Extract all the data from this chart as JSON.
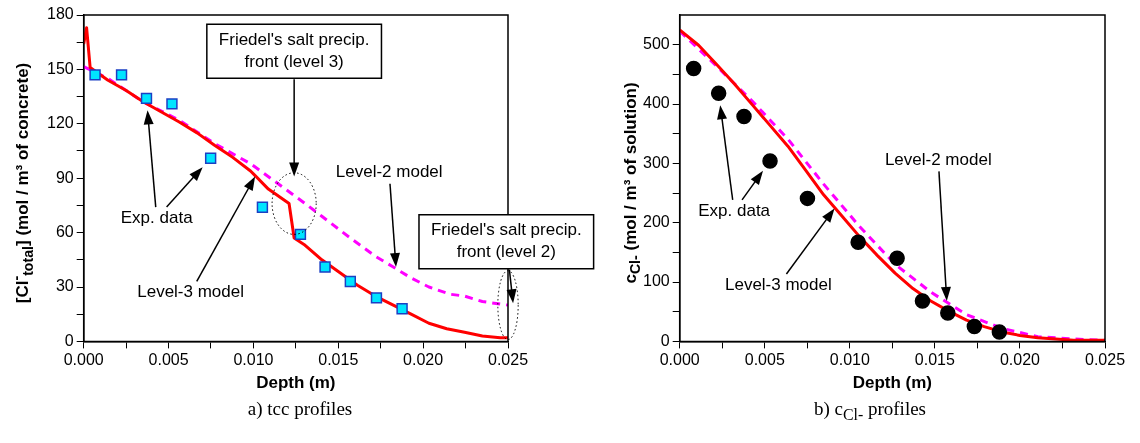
{
  "chart_data": [
    {
      "type": "line",
      "xlabel": "Depth (m)",
      "ylabel": "[Cl$^{-}$$_{total}$] (mol / m³ of concrete)",
      "xlim": [
        0,
        0.025
      ],
      "xticks": [
        {
          "value": 0,
          "label": "0.000"
        },
        {
          "value": 0.0025,
          "label": null
        },
        {
          "value": 0.005,
          "label": "0.005"
        },
        {
          "value": 0.0075,
          "label": null
        },
        {
          "value": 0.01,
          "label": "0.010"
        },
        {
          "value": 0.0125,
          "label": null
        },
        {
          "value": 0.015,
          "label": "0.015"
        },
        {
          "value": 0.0175,
          "label": null
        },
        {
          "value": 0.02,
          "label": "0.020"
        },
        {
          "value": 0.0225,
          "label": null
        },
        {
          "value": 0.025,
          "label": "0.025"
        }
      ],
      "ylim": [
        0,
        180
      ],
      "yticks": [
        0,
        {
          "value": 15,
          "label": null
        },
        30,
        {
          "value": 45,
          "label": null
        },
        60,
        {
          "value": 75,
          "label": null
        },
        90,
        {
          "value": 105,
          "label": null
        },
        120,
        {
          "value": 135,
          "label": null
        },
        150,
        {
          "value": 165,
          "label": null
        },
        180
      ],
      "grid": false,
      "legend": false,
      "series": [
        {
          "type": "scatter",
          "marker": "square",
          "color": "#00e5ff",
          "x": [
            0.00067,
            0.00223,
            0.0037,
            0.0052,
            0.00748,
            0.01053,
            0.01277,
            0.01422,
            0.01571,
            0.01725,
            0.01876
          ],
          "values": [
            147,
            147,
            134,
            131,
            101,
            74,
            59,
            41,
            33,
            24,
            18
          ]
        },
        {
          "type": "line",
          "marker": "none",
          "line_style": "solid",
          "color": "#ff0000",
          "x": [
            0,
            0.00017,
            0.00038,
            0.00143,
            0.00248,
            0.00353,
            0.00458,
            0.00563,
            0.00668,
            0.00773,
            0.00878,
            0.00983,
            0.01088,
            0.0121,
            0.0124,
            0.01298,
            0.01403,
            0.01508,
            0.01613,
            0.01718,
            0.01824,
            0.01929,
            0.02034,
            0.02139,
            0.02244,
            0.02349,
            0.02454,
            0.025
          ],
          "values": [
            164,
            173,
            151,
            144,
            138.5,
            132,
            126.5,
            121,
            115,
            108,
            101.5,
            94,
            84,
            76,
            57,
            53.5,
            45,
            38,
            31,
            25,
            20,
            15,
            10,
            7,
            5,
            3,
            2,
            2
          ]
        },
        {
          "type": "line",
          "marker": "none",
          "line_style": "dashed",
          "color": "#ff00ff",
          "x": [
            0,
            0.00143,
            0.00353,
            0.00563,
            0.00773,
            0.00983,
            0.0113,
            0.01298,
            0.01403,
            0.01571,
            0.01718,
            0.01824,
            0.01929,
            0.02034,
            0.0216,
            0.02244,
            0.02349,
            0.025
          ],
          "values": [
            151.5,
            145,
            132,
            122,
            109,
            98,
            88,
            76.5,
            69,
            57,
            47,
            41,
            35,
            30,
            26,
            25,
            22,
            20
          ]
        }
      ],
      "annotations": [
        "Friedel's salt precip. front (level 3)",
        "Friedel's salt precip. front (level 2)",
        "Exp. data",
        "Level-3 model",
        "Level-2 model",
        "a) tcc profiles"
      ]
    },
    {
      "type": "line",
      "xlabel": "Depth (m)",
      "ylabel": "c$_{Cl-}$ (mol / m³ of solution)",
      "xlim": [
        0,
        0.025
      ],
      "xticks": [
        {
          "value": 0,
          "label": "0.000"
        },
        {
          "value": 0.0025,
          "label": null
        },
        {
          "value": 0.005,
          "label": "0.005"
        },
        {
          "value": 0.0075,
          "label": null
        },
        {
          "value": 0.01,
          "label": "0.010"
        },
        {
          "value": 0.0125,
          "label": null
        },
        {
          "value": 0.015,
          "label": "0.015"
        },
        {
          "value": 0.0175,
          "label": null
        },
        {
          "value": 0.02,
          "label": "0.020"
        },
        {
          "value": 0.0225,
          "label": null
        },
        {
          "value": 0.025,
          "label": "0.025"
        }
      ],
      "ylim": [
        0,
        550
      ],
      "yticks": [
        0,
        {
          "value": 50,
          "label": null
        },
        100,
        {
          "value": 150,
          "label": null
        },
        200,
        {
          "value": 250,
          "label": null
        },
        300,
        {
          "value": 350,
          "label": null
        },
        400,
        {
          "value": 450,
          "label": null
        },
        500
      ],
      "grid": false,
      "legend": false,
      "series": [
        {
          "type": "scatter",
          "marker": "circle",
          "color": "#000000",
          "x": [
            0.00082,
            0.00229,
            0.00378,
            0.00531,
            0.00751,
            0.01049,
            0.01278,
            0.01427,
            0.01576,
            0.01732,
            0.01879
          ],
          "values": [
            460,
            418,
            379,
            304,
            241,
            167,
            140,
            68,
            48,
            25,
            16
          ]
        },
        {
          "type": "line",
          "marker": "none",
          "line_style": "solid",
          "color": "#ff0000",
          "x": [
            0,
            0.00111,
            0.00216,
            0.00321,
            0.00426,
            0.00531,
            0.00636,
            0.00741,
            0.00846,
            0.00951,
            0.01056,
            0.01161,
            0.01266,
            0.01371,
            0.01476,
            0.01581,
            0.01686,
            0.0179,
            0.01895,
            0.02,
            0.02105,
            0.0221,
            0.02315,
            0.025
          ],
          "values": [
            525,
            499,
            467,
            434,
            399,
            364,
            329,
            288,
            247,
            212,
            177,
            145,
            115,
            89,
            68,
            51,
            36,
            25,
            16,
            10,
            6,
            4,
            2,
            2
          ]
        },
        {
          "type": "line",
          "marker": "none",
          "line_style": "dashed",
          "color": "#ff00ff",
          "x": [
            0,
            0.00216,
            0.00426,
            0.00636,
            0.00846,
            0.01056,
            0.01266,
            0.01476,
            0.01686,
            0.01895,
            0.02105,
            0.02315,
            0.025
          ],
          "values": [
            523,
            464,
            405,
            341,
            265,
            194,
            130,
            83,
            45,
            22,
            8,
            4,
            2
          ]
        }
      ],
      "annotations": [
        "Exp. data",
        "Level-3 model",
        "Level-2 model",
        "b) c$_{Cl-}$ profiles"
      ]
    }
  ]
}
